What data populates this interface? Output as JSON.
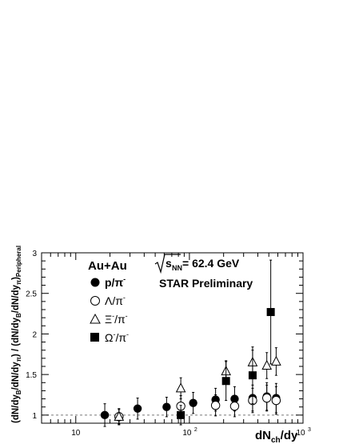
{
  "chart_data": {
    "type": "scatter",
    "title": "",
    "xlabel": "dN",
    "xlabel_sub": "ch",
    "xlabel_tail": "/dy",
    "ylabel_text": "(dN/dy_B/dN/dy_π) / (dN/dy_B/dN/dy_π)_Peripheral",
    "x_scale": "log",
    "xlim": [
      5,
      1000
    ],
    "ylim": [
      0.9,
      3.0
    ],
    "x_ticks": [
      {
        "value": 10,
        "label": "10"
      },
      {
        "value": 100,
        "label": "10",
        "exp": "2"
      },
      {
        "value": 1000,
        "label": "10",
        "exp": "3"
      }
    ],
    "y_ticks": [
      {
        "value": 1,
        "label": "1"
      },
      {
        "value": 1.5,
        "label": "1.5"
      },
      {
        "value": 2,
        "label": "2"
      },
      {
        "value": 2.5,
        "label": "2.5"
      },
      {
        "value": 3,
        "label": "3"
      }
    ],
    "reference_line": 1.0,
    "annotations": {
      "system": "Au+Au",
      "energy_root": "s",
      "energy_sub": "NN",
      "energy_value": " = 62.4 GeV",
      "status": "STAR Preliminary"
    },
    "legend_position": "top-left",
    "series": [
      {
        "name": "p/π",
        "legend_label": "p/π",
        "legend_sup": "-",
        "marker": "circle-filled",
        "x": [
          18,
          35,
          63,
          108,
          170,
          250,
          360,
          480,
          580
        ],
        "y": [
          1.0,
          1.08,
          1.1,
          1.15,
          1.19,
          1.2,
          1.21,
          1.23,
          1.21
        ],
        "err": [
          0.14,
          0.13,
          0.12,
          0.13,
          0.14,
          0.15,
          0.16,
          0.17,
          0.18
        ]
      },
      {
        "name": "Λ/π",
        "legend_label": "Λ/π",
        "legend_sup": "-",
        "marker": "circle-open",
        "x": [
          24,
          84,
          170,
          250,
          360,
          480,
          580
        ],
        "y": [
          0.98,
          1.11,
          1.12,
          1.11,
          1.18,
          1.21,
          1.18
        ],
        "err": [
          0.1,
          0.13,
          0.13,
          0.13,
          0.15,
          0.16,
          0.17
        ]
      },
      {
        "name": "Ξ/π",
        "legend_label": "Ξ",
        "legend_mid": "-",
        "legend_tail": "/π",
        "legend_sup": "-",
        "marker": "triangle-open",
        "x": [
          24,
          84,
          210,
          360,
          480,
          580
        ],
        "y": [
          0.98,
          1.33,
          1.54,
          1.65,
          1.61,
          1.66
        ],
        "err": [
          0.09,
          0.13,
          0.13,
          0.15,
          0.16,
          0.17
        ]
      },
      {
        "name": "Ω/π",
        "legend_label": "Ω",
        "legend_mid": "-",
        "legend_tail": "/π",
        "legend_sup": "-",
        "marker": "square-filled",
        "x": [
          84,
          210,
          360,
          520
        ],
        "y": [
          1.0,
          1.42,
          1.49,
          2.27
        ],
        "err": [
          0.12,
          0.24,
          0.35,
          0.64
        ]
      }
    ]
  }
}
